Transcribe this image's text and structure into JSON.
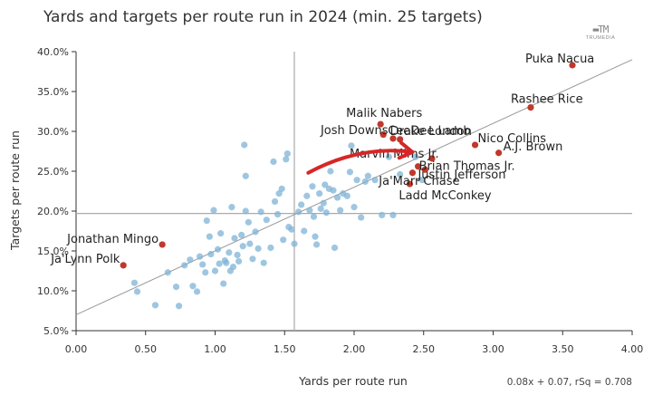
{
  "chart_data": {
    "type": "scatter",
    "title": "Yards and targets per route run in 2024 (min. 25 targets)",
    "xlabel": "Yards per route run",
    "ylabel": "Targets per route run",
    "xlim": [
      0,
      4
    ],
    "ylim": [
      5,
      40
    ],
    "x_ticks": [
      "0.00",
      "0.50",
      "1.00",
      "1.50",
      "2.00",
      "2.50",
      "3.00",
      "3.50",
      "4.00"
    ],
    "y_ticks": [
      "5.0%",
      "10.0%",
      "15.0%",
      "20.0%",
      "25.0%",
      "30.0%",
      "35.0%",
      "40.0%"
    ],
    "grid": false,
    "reference_lines": {
      "x_mean": 1.57,
      "y_mean": 19.7
    },
    "regression": {
      "slope": 8,
      "intercept": 7,
      "label": "0.08x + 0.07, rSq = 0.708"
    },
    "colors": {
      "default": "#7fb3d5",
      "highlight": "#c0392b",
      "regression": "#999999",
      "reference": "#aaaaaa",
      "arrow": "#d62728"
    },
    "labeled_points": [
      {
        "name": "Puka Nacua",
        "x": 3.57,
        "y": 38.3
      },
      {
        "name": "Rashee Rice",
        "x": 3.27,
        "y": 33.0
      },
      {
        "name": "Malik Nabers",
        "x": 2.19,
        "y": 30.9
      },
      {
        "name": "CeeDee Lamb",
        "x": 2.21,
        "y": 29.6
      },
      {
        "name": "Josh Downs",
        "x": 2.28,
        "y": 29.1
      },
      {
        "name": "Drake London",
        "x": 2.33,
        "y": 29.0
      },
      {
        "name": "Nico Collins",
        "x": 2.87,
        "y": 28.3
      },
      {
        "name": "A.J. Brown",
        "x": 3.04,
        "y": 27.3
      },
      {
        "name": "Marvin Mims Jr.",
        "x": 2.56,
        "y": 26.6
      },
      {
        "name": "Brian Thomas Jr.",
        "x": 2.46,
        "y": 25.6
      },
      {
        "name": "Justin Jefferson",
        "x": 2.42,
        "y": 24.8
      },
      {
        "name": "Ja'Marr Chase",
        "x": 2.51,
        "y": 25.2
      },
      {
        "name": "Ladd McConkey",
        "x": 2.4,
        "y": 23.4
      },
      {
        "name": "Jonathan Mingo",
        "x": 0.62,
        "y": 15.8
      },
      {
        "name": "Ja'Lynn Polk",
        "x": 0.34,
        "y": 13.2
      }
    ],
    "other_points": [
      {
        "x": 0.42,
        "y": 11.0
      },
      {
        "x": 0.44,
        "y": 9.9
      },
      {
        "x": 0.57,
        "y": 8.2
      },
      {
        "x": 0.66,
        "y": 12.3
      },
      {
        "x": 0.72,
        "y": 10.5
      },
      {
        "x": 0.74,
        "y": 8.1
      },
      {
        "x": 0.78,
        "y": 13.2
      },
      {
        "x": 0.82,
        "y": 13.9
      },
      {
        "x": 0.84,
        "y": 10.6
      },
      {
        "x": 0.87,
        "y": 9.9
      },
      {
        "x": 0.89,
        "y": 14.3
      },
      {
        "x": 0.91,
        "y": 13.3
      },
      {
        "x": 0.93,
        "y": 12.3
      },
      {
        "x": 0.94,
        "y": 18.8
      },
      {
        "x": 0.96,
        "y": 16.8
      },
      {
        "x": 0.97,
        "y": 14.6
      },
      {
        "x": 0.99,
        "y": 20.1
      },
      {
        "x": 1.0,
        "y": 12.5
      },
      {
        "x": 1.02,
        "y": 15.2
      },
      {
        "x": 1.03,
        "y": 13.4
      },
      {
        "x": 1.04,
        "y": 17.2
      },
      {
        "x": 1.06,
        "y": 10.9
      },
      {
        "x": 1.07,
        "y": 13.8
      },
      {
        "x": 1.08,
        "y": 13.5
      },
      {
        "x": 1.1,
        "y": 14.8
      },
      {
        "x": 1.11,
        "y": 12.5
      },
      {
        "x": 1.13,
        "y": 13.0
      },
      {
        "x": 1.12,
        "y": 20.5
      },
      {
        "x": 1.14,
        "y": 16.6
      },
      {
        "x": 1.16,
        "y": 14.5
      },
      {
        "x": 1.17,
        "y": 13.7
      },
      {
        "x": 1.19,
        "y": 17.0
      },
      {
        "x": 1.2,
        "y": 15.6
      },
      {
        "x": 1.21,
        "y": 28.3
      },
      {
        "x": 1.22,
        "y": 24.4
      },
      {
        "x": 1.22,
        "y": 20.0
      },
      {
        "x": 1.24,
        "y": 18.6
      },
      {
        "x": 1.25,
        "y": 15.9
      },
      {
        "x": 1.27,
        "y": 14.0
      },
      {
        "x": 1.29,
        "y": 17.4
      },
      {
        "x": 1.31,
        "y": 15.3
      },
      {
        "x": 1.33,
        "y": 19.9
      },
      {
        "x": 1.35,
        "y": 13.5
      },
      {
        "x": 1.37,
        "y": 18.9
      },
      {
        "x": 1.4,
        "y": 15.4
      },
      {
        "x": 1.42,
        "y": 26.2
      },
      {
        "x": 1.43,
        "y": 21.2
      },
      {
        "x": 1.45,
        "y": 19.6
      },
      {
        "x": 1.46,
        "y": 22.2
      },
      {
        "x": 1.48,
        "y": 22.8
      },
      {
        "x": 1.49,
        "y": 16.4
      },
      {
        "x": 1.51,
        "y": 26.5
      },
      {
        "x": 1.52,
        "y": 27.2
      },
      {
        "x": 1.53,
        "y": 18.0
      },
      {
        "x": 1.55,
        "y": 17.7
      },
      {
        "x": 1.57,
        "y": 15.9
      },
      {
        "x": 1.6,
        "y": 19.9
      },
      {
        "x": 1.62,
        "y": 20.8
      },
      {
        "x": 1.64,
        "y": 17.5
      },
      {
        "x": 1.66,
        "y": 21.9
      },
      {
        "x": 1.68,
        "y": 20.1
      },
      {
        "x": 1.7,
        "y": 23.1
      },
      {
        "x": 1.71,
        "y": 19.3
      },
      {
        "x": 1.72,
        "y": 16.8
      },
      {
        "x": 1.73,
        "y": 15.8
      },
      {
        "x": 1.75,
        "y": 22.2
      },
      {
        "x": 1.76,
        "y": 20.3
      },
      {
        "x": 1.78,
        "y": 21.0
      },
      {
        "x": 1.79,
        "y": 23.3
      },
      {
        "x": 1.8,
        "y": 19.8
      },
      {
        "x": 1.82,
        "y": 22.8
      },
      {
        "x": 1.83,
        "y": 25.0
      },
      {
        "x": 1.85,
        "y": 22.6
      },
      {
        "x": 1.86,
        "y": 15.4
      },
      {
        "x": 1.88,
        "y": 21.7
      },
      {
        "x": 1.9,
        "y": 20.1
      },
      {
        "x": 1.92,
        "y": 22.2
      },
      {
        "x": 1.95,
        "y": 21.9
      },
      {
        "x": 1.97,
        "y": 24.9
      },
      {
        "x": 1.98,
        "y": 28.2
      },
      {
        "x": 2.0,
        "y": 20.5
      },
      {
        "x": 2.02,
        "y": 23.9
      },
      {
        "x": 2.05,
        "y": 19.2
      },
      {
        "x": 2.08,
        "y": 23.7
      },
      {
        "x": 2.1,
        "y": 24.4
      },
      {
        "x": 2.15,
        "y": 23.9
      },
      {
        "x": 2.2,
        "y": 19.5
      },
      {
        "x": 2.25,
        "y": 26.8
      },
      {
        "x": 2.28,
        "y": 19.5
      },
      {
        "x": 2.33,
        "y": 24.6
      },
      {
        "x": 2.44,
        "y": 26.8
      },
      {
        "x": 2.49,
        "y": 23.9
      }
    ],
    "annotation": {
      "type": "arrow",
      "from": [
        1.67,
        24.8
      ],
      "to": [
        2.42,
        27.4
      ]
    },
    "branding": {
      "logo_text": "TRUMEDIA"
    }
  }
}
